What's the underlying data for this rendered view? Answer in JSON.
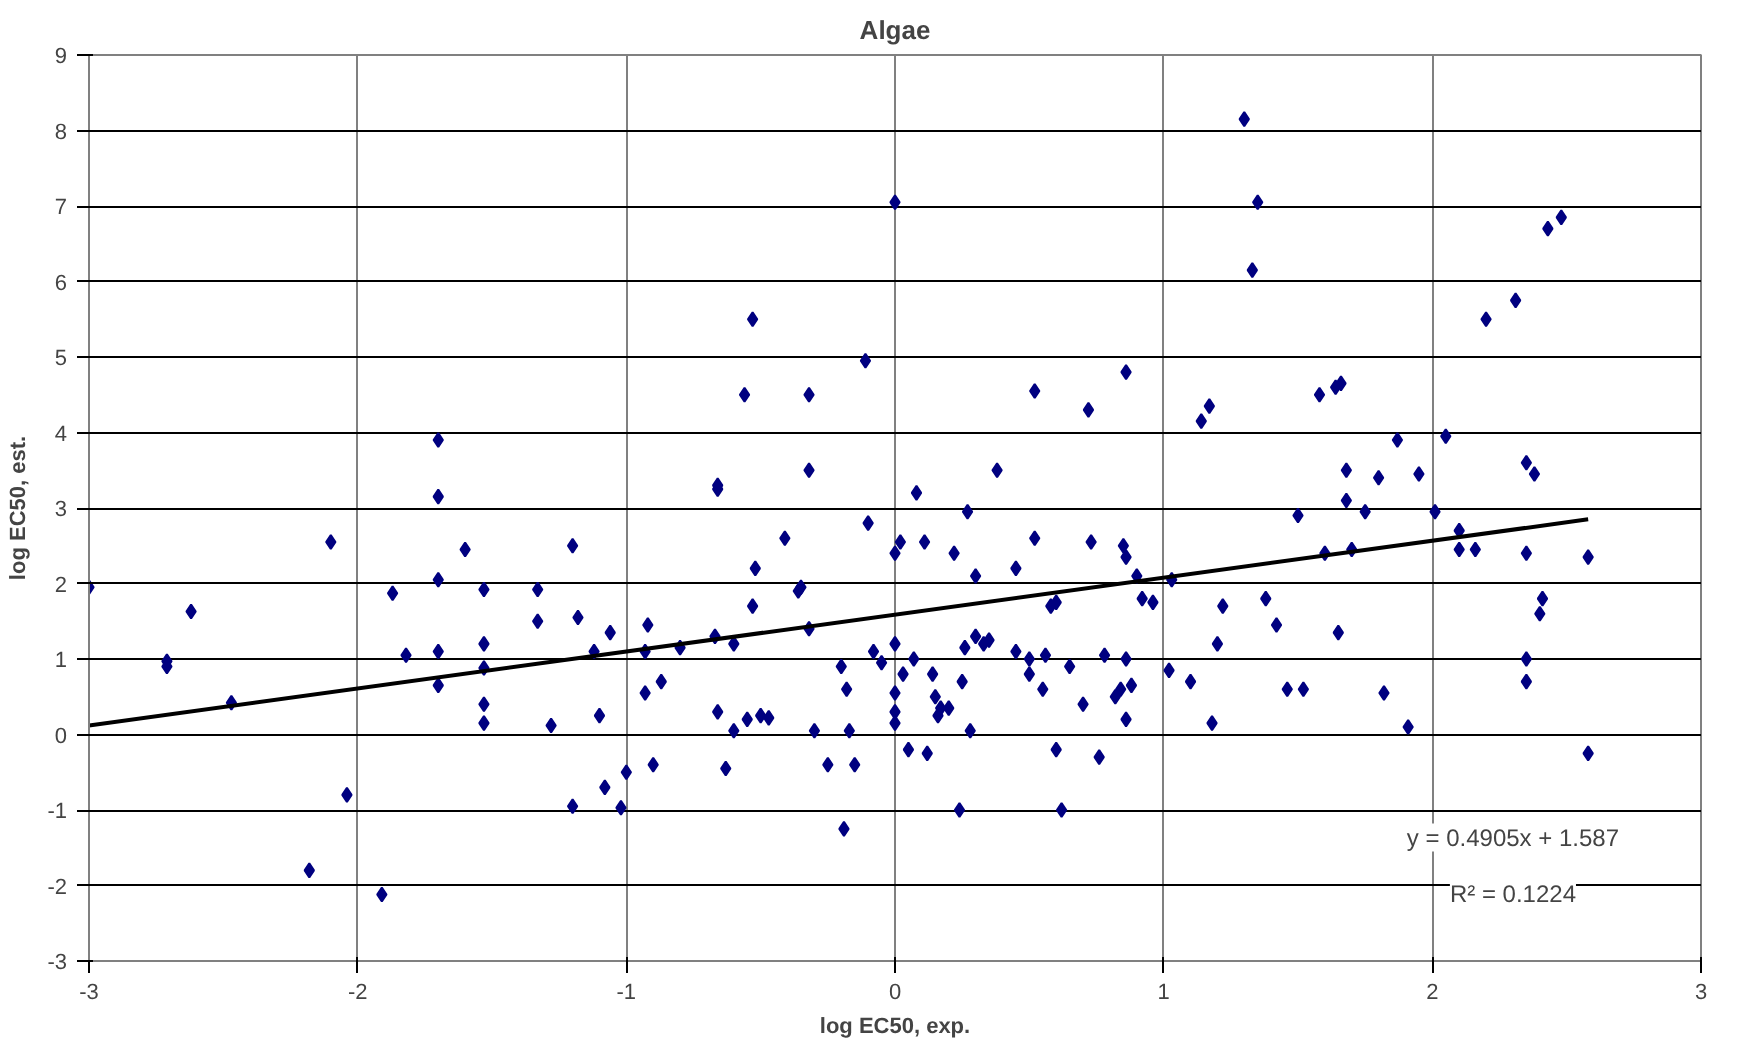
{
  "chart_data": {
    "type": "scatter",
    "title": "Algae",
    "xlabel": "log EC50, exp.",
    "ylabel": "log EC50, est.",
    "xlim": [
      -3,
      3
    ],
    "ylim": [
      -3,
      9
    ],
    "xticks": [
      -3,
      -2,
      -1,
      0,
      1,
      2,
      3
    ],
    "yticks": [
      -3,
      -2,
      -1,
      0,
      1,
      2,
      3,
      4,
      5,
      6,
      7,
      8,
      9
    ],
    "grid": true,
    "annotations": [
      "y = 0.4905x + 1.587",
      "R² = 0.1224"
    ],
    "series": [
      {
        "color": "#000080",
        "marker": "diamond",
        "x": [
          -3,
          -2.71,
          -2.71,
          -2.62,
          -2.47,
          -2.1,
          -2.18,
          -2.04,
          -1.91,
          -1.87,
          -1.82,
          -1.7,
          -1.7,
          -1.7,
          -1.7,
          -1.7,
          -1.6,
          -1.53,
          -1.53,
          -1.53,
          -1.53,
          -1.53,
          -1.33,
          -1.33,
          -1.28,
          -1.2,
          -1.2,
          -1.18,
          -1.12,
          -1.1,
          -1.08,
          -1.06,
          -1.02,
          -1.0,
          -0.93,
          -0.93,
          -0.92,
          -0.9,
          -0.87,
          -0.8,
          -0.66,
          -0.66,
          -0.67,
          -0.66,
          -0.63,
          -0.6,
          -0.6,
          -0.56,
          -0.53,
          -0.52,
          -0.53,
          -0.55,
          -0.5,
          -0.47,
          -0.41,
          -0.36,
          -0.35,
          -0.32,
          -0.32,
          -0.32,
          -0.3,
          -0.25,
          -0.2,
          -0.18,
          -0.19,
          -0.17,
          -0.15,
          -0.11,
          -0.1,
          -0.08,
          -0.05,
          0,
          0,
          0,
          0,
          0,
          0,
          0.02,
          0.03,
          0.05,
          0.07,
          0.08,
          0.11,
          0.12,
          0.14,
          0.15,
          0.16,
          0.17,
          0.2,
          0.22,
          0.24,
          0.25,
          0.26,
          0.27,
          0.28,
          0.3,
          0.3,
          0.33,
          0.35,
          0.38,
          0.45,
          0.45,
          0.5,
          0.5,
          0.52,
          0.52,
          0.55,
          0.56,
          0.58,
          0.6,
          0.6,
          0.62,
          0.65,
          0.7,
          0.72,
          0.73,
          0.76,
          0.78,
          0.82,
          0.84,
          0.85,
          0.86,
          0.86,
          0.86,
          0.86,
          0.88,
          0.9,
          0.92,
          0.96,
          1.02,
          1.03,
          1.1,
          1.14,
          1.17,
          1.18,
          1.2,
          1.22,
          1.3,
          1.35,
          1.33,
          1.38,
          1.42,
          1.46,
          1.5,
          1.52,
          1.58,
          1.6,
          1.64,
          1.66,
          1.65,
          1.68,
          1.68,
          1.7,
          1.75,
          1.8,
          1.82,
          1.87,
          1.91,
          1.95,
          2.01,
          2.05,
          2.1,
          2.1,
          2.16,
          2.2,
          2.31,
          2.35,
          2.35,
          2.35,
          2.35,
          2.38,
          2.4,
          2.41,
          2.43,
          2.48,
          2.58,
          2.58
        ],
        "values": [
          1.95,
          0.97,
          0.9,
          1.63,
          0.42,
          2.55,
          -1.8,
          -0.8,
          -2.12,
          1.87,
          1.05,
          3.9,
          3.15,
          2.05,
          1.1,
          0.65,
          2.45,
          1.92,
          1.2,
          0.88,
          0.4,
          0.15,
          1.92,
          1.5,
          0.12,
          -0.95,
          2.5,
          1.55,
          1.1,
          0.25,
          -0.7,
          1.35,
          -0.97,
          -0.5,
          1.1,
          0.55,
          1.45,
          -0.4,
          0.7,
          1.15,
          3.3,
          3.25,
          1.3,
          0.3,
          -0.45,
          1.2,
          0.05,
          4.5,
          5.5,
          2.2,
          1.7,
          0.2,
          0.25,
          0.22,
          2.6,
          1.9,
          1.95,
          4.5,
          3.5,
          1.4,
          0.05,
          -0.4,
          0.9,
          0.6,
          -1.25,
          0.05,
          -0.4,
          4.95,
          2.8,
          1.1,
          0.95,
          7.05,
          2.4,
          1.2,
          0.55,
          0.3,
          0.15,
          2.55,
          0.8,
          -0.2,
          1.0,
          3.2,
          2.55,
          -0.25,
          0.8,
          0.5,
          0.25,
          0.35,
          0.35,
          2.4,
          -1.0,
          0.7,
          1.15,
          2.95,
          0.05,
          1.3,
          2.1,
          1.2,
          1.25,
          3.5,
          1.1,
          2.2,
          0.8,
          1.0,
          4.55,
          2.6,
          0.6,
          1.05,
          1.7,
          1.75,
          -0.2,
          -1.0,
          0.9,
          0.4,
          4.3,
          2.55,
          -0.3,
          1.05,
          0.5,
          0.6,
          2.5,
          2.35,
          4.8,
          1.0,
          0.2,
          0.65,
          2.1,
          1.8,
          1.75,
          0.85,
          2.05,
          0.7,
          4.15,
          4.35,
          0.15,
          1.2,
          1.7,
          8.15,
          7.05,
          6.15,
          1.8,
          1.45,
          0.6,
          2.9,
          0.6,
          4.5,
          2.4,
          4.6,
          4.65,
          1.35,
          3.5,
          3.1,
          2.45,
          2.95,
          3.4,
          0.55,
          3.9,
          0.1,
          3.45,
          2.95,
          3.95,
          2.7,
          2.45,
          2.45,
          5.5,
          5.75,
          3.6,
          2.4,
          1.0,
          0.7,
          3.45,
          1.6,
          1.8,
          6.7,
          6.85,
          2.35,
          -0.25
        ]
      },
      {
        "type": "line",
        "color": "#000000",
        "line_style": "solid",
        "marker": "none",
        "x": [
          -3,
          2.58
        ],
        "values": [
          0.12,
          2.85
        ]
      }
    ]
  }
}
